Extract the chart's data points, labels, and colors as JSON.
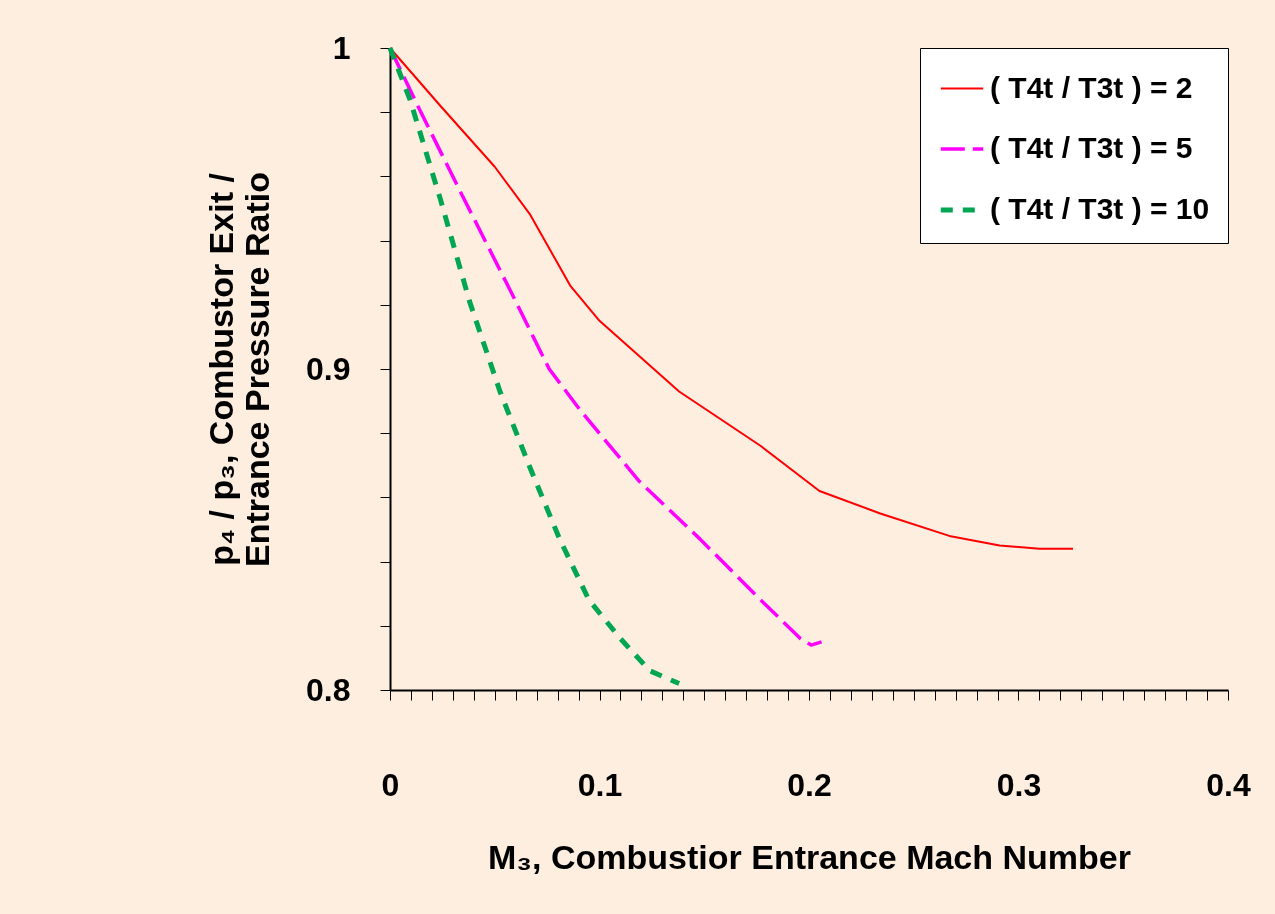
{
  "chart_data": {
    "type": "line",
    "xlabel": "M₃, Combustior Entrance Mach Number",
    "ylabel": "p₄ / p₃, Combustor Exit /\nEntrance Pressure Ratio",
    "xlim": [
      0,
      0.4
    ],
    "ylim": [
      0.8,
      1
    ],
    "xticks": [
      0,
      {
        "value": 0.01,
        "label": null
      },
      {
        "value": 0.02,
        "label": null
      },
      {
        "value": 0.03,
        "label": null
      },
      {
        "value": 0.04,
        "label": null
      },
      {
        "value": 0.05,
        "label": null
      },
      {
        "value": 0.06,
        "label": null
      },
      {
        "value": 0.07,
        "label": null
      },
      {
        "value": 0.08,
        "label": null
      },
      {
        "value": 0.09,
        "label": null
      },
      0.1,
      {
        "value": 0.11,
        "label": null
      },
      {
        "value": 0.12,
        "label": null
      },
      {
        "value": 0.13,
        "label": null
      },
      {
        "value": 0.14,
        "label": null
      },
      {
        "value": 0.15,
        "label": null
      },
      {
        "value": 0.16,
        "label": null
      },
      {
        "value": 0.17,
        "label": null
      },
      {
        "value": 0.18,
        "label": null
      },
      {
        "value": 0.19,
        "label": null
      },
      0.2,
      {
        "value": 0.21,
        "label": null
      },
      {
        "value": 0.22,
        "label": null
      },
      {
        "value": 0.23,
        "label": null
      },
      {
        "value": 0.24,
        "label": null
      },
      {
        "value": 0.25,
        "label": null
      },
      {
        "value": 0.26,
        "label": null
      },
      {
        "value": 0.27,
        "label": null
      },
      {
        "value": 0.28,
        "label": null
      },
      {
        "value": 0.29,
        "label": null
      },
      0.3,
      {
        "value": 0.31,
        "label": null
      },
      {
        "value": 0.32,
        "label": null
      },
      {
        "value": 0.33,
        "label": null
      },
      {
        "value": 0.34,
        "label": null
      },
      {
        "value": 0.35,
        "label": null
      },
      {
        "value": 0.36,
        "label": null
      },
      {
        "value": 0.37,
        "label": null
      },
      {
        "value": 0.38,
        "label": null
      },
      {
        "value": 0.39,
        "label": null
      },
      0.4
    ],
    "yticks": [
      0.8,
      {
        "value": 0.82,
        "label": null
      },
      {
        "value": 0.84,
        "label": null
      },
      {
        "value": 0.86,
        "label": null
      },
      {
        "value": 0.88,
        "label": null
      },
      0.9,
      {
        "value": 0.92,
        "label": null
      },
      {
        "value": 0.94,
        "label": null
      },
      {
        "value": 0.96,
        "label": null
      },
      {
        "value": 0.98,
        "label": null
      },
      1
    ],
    "grid": false,
    "legend": "top right",
    "marker": "none",
    "series": [
      {
        "name": "( T4t / T3t ) = 2",
        "color": "#ff0000",
        "line_style": "solid",
        "x": [
          0,
          0.024,
          0.05,
          0.067,
          0.086,
          0.1,
          0.138,
          0.177,
          0.205,
          0.234,
          0.267,
          0.291,
          0.31,
          0.326
        ],
        "values": [
          1,
          0.982,
          0.963,
          0.948,
          0.926,
          0.915,
          0.893,
          0.876,
          0.862,
          0.855,
          0.848,
          0.845,
          0.844,
          0.844
        ]
      },
      {
        "name": "( T4t / T3t ) = 5",
        "color": "#ff00ff",
        "line_style": "dashed",
        "x": [
          0,
          0.014,
          0.033,
          0.057,
          0.076,
          0.091,
          0.119,
          0.148,
          0.177,
          0.196,
          0.201,
          0.206
        ],
        "values": [
          1,
          0.981,
          0.956,
          0.925,
          0.9,
          0.887,
          0.865,
          0.847,
          0.828,
          0.816,
          0.814,
          0.815
        ]
      },
      {
        "name": "( T4t / T3t ) = 10",
        "color": "#00a651",
        "line_style": "dotted",
        "x": [
          0,
          0.0095,
          0.024,
          0.038,
          0.0525,
          0.067,
          0.081,
          0.095,
          0.11,
          0.124,
          0.138
        ],
        "values": [
          1,
          0.984,
          0.953,
          0.921,
          0.893,
          0.869,
          0.847,
          0.828,
          0.816,
          0.806,
          0.802
        ]
      }
    ]
  }
}
